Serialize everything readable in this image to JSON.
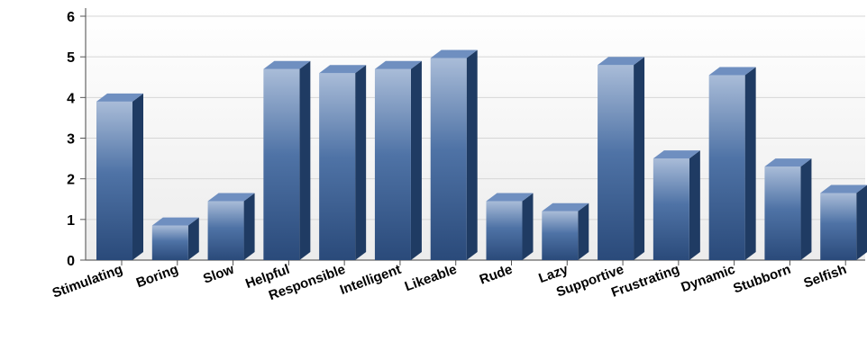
{
  "chart_data": {
    "type": "bar",
    "categories": [
      "Stimulating",
      "Boring",
      "Slow",
      "Helpful",
      "Responsible",
      "Intelligent",
      "Likeable",
      "Rude",
      "Lazy",
      "Supportive",
      "Frustrating",
      "Dynamic",
      "Stubborn",
      "Selfish"
    ],
    "values": [
      3.9,
      0.85,
      1.45,
      4.7,
      4.6,
      4.7,
      4.97,
      1.45,
      1.2,
      4.8,
      2.5,
      4.55,
      2.3,
      1.65
    ],
    "title": "",
    "xlabel": "",
    "ylabel": "",
    "ylim": [
      0,
      6
    ],
    "yticks": [
      "0",
      "1",
      "2",
      "3",
      "4",
      "5",
      "6"
    ],
    "grid": true,
    "legend": "none",
    "style": "3d",
    "colors": {
      "bar_light": "#a9bcd8",
      "bar_mid": "#4f73a6",
      "bar_dark": "#2a4a7a",
      "bar_side": "#1f3b63",
      "bar_top": "#6f8fc0",
      "gridline": "#d6d6d6",
      "plot_top": "#ffffff",
      "plot_bottom": "#ececec"
    }
  }
}
